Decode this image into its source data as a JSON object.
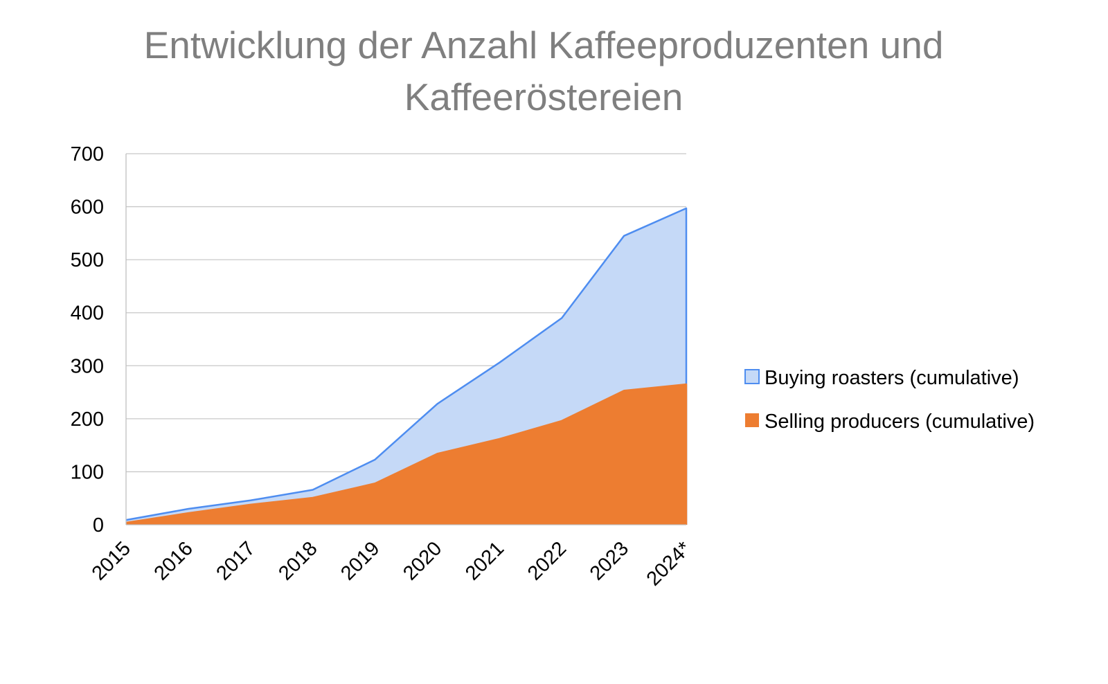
{
  "chart_data": {
    "type": "area",
    "title": "Entwicklung der Anzahl Kaffeeproduzenten und Kaffeeröstereien",
    "xlabel": "",
    "ylabel": "",
    "categories": [
      "2015",
      "2016",
      "2017",
      "2018",
      "2019",
      "2020",
      "2021",
      "2022",
      "2023",
      "2024*"
    ],
    "ylim": [
      0,
      700
    ],
    "yticks": [
      0,
      100,
      200,
      300,
      400,
      500,
      600,
      700
    ],
    "stacked": false,
    "grid": true,
    "legend_position": "right",
    "series": [
      {
        "name": "Buying roasters (cumulative)",
        "values": [
          9,
          30,
          46,
          66,
          123,
          228,
          306,
          390,
          545,
          597
        ],
        "fill": "#c5d9f7",
        "stroke": "#4e8df0"
      },
      {
        "name": "Selling producers (cumulative)",
        "values": [
          4,
          22,
          38,
          51,
          78,
          134,
          162,
          196,
          253,
          265
        ],
        "fill": "#ed7d31",
        "stroke": "#ed7d31"
      }
    ]
  }
}
